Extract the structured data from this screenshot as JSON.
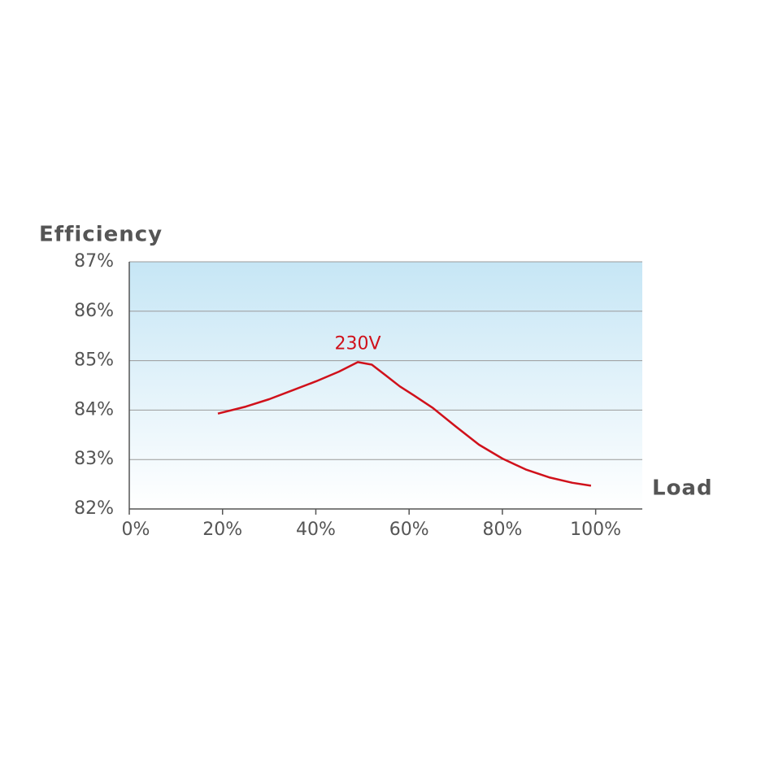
{
  "chart_data": {
    "type": "line",
    "y_label": "Efficiency",
    "x_label": "Load",
    "x": [
      19,
      25,
      30,
      35,
      40,
      45,
      49,
      52,
      55,
      58,
      61,
      65,
      70,
      75,
      80,
      85,
      90,
      95,
      99
    ],
    "series": [
      {
        "name": "230V",
        "color": "#d0111b",
        "values": [
          83.93,
          84.07,
          84.22,
          84.4,
          84.58,
          84.78,
          84.97,
          84.92,
          84.7,
          84.48,
          84.3,
          84.05,
          83.67,
          83.3,
          83.02,
          82.8,
          82.64,
          82.53,
          82.47
        ]
      }
    ],
    "xlim": [
      0,
      110
    ],
    "xticks": [
      {
        "value": 0,
        "label": "0%"
      },
      {
        "value": 20,
        "label": "20%"
      },
      {
        "value": 40,
        "label": "40%"
      },
      {
        "value": 60,
        "label": "60%"
      },
      {
        "value": 80,
        "label": "80%"
      },
      {
        "value": 100,
        "label": "100%"
      }
    ],
    "ylim": [
      82,
      87
    ],
    "yticks": [
      {
        "value": 82,
        "label": "82%"
      },
      {
        "value": 83,
        "label": "83%"
      },
      {
        "value": 84,
        "label": "84%"
      },
      {
        "value": 85,
        "label": "85%"
      },
      {
        "value": 86,
        "label": "86%"
      },
      {
        "value": 87,
        "label": "87%"
      }
    ],
    "grid": true
  }
}
